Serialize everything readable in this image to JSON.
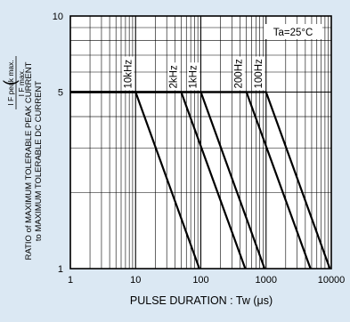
{
  "chart_data": {
    "type": "line",
    "x_scale": "log",
    "y_scale": "log",
    "xlim": [
      1,
      10000
    ],
    "ylim": [
      1,
      10
    ],
    "xlabel": "PULSE  DURATION : Tw (μs)",
    "ylabel_line1": "RATIO of MAXIMUM TOLERABLE  PEAK CURRENT",
    "ylabel_line2": "to MAXIMUM TOLERABLE DC CURRENT",
    "ylabel_frac_num": "I F peak max.",
    "ylabel_frac_den": "I F max.",
    "annotation": "Ta=25°C",
    "grid": true,
    "x_ticks": [
      {
        "value": 1,
        "label": "1"
      },
      {
        "value": 10,
        "label": "10"
      },
      {
        "value": 100,
        "label": "100"
      },
      {
        "value": 1000,
        "label": "1000"
      },
      {
        "value": 10000,
        "label": "10000"
      }
    ],
    "y_ticks": [
      {
        "value": 1,
        "label": "1"
      },
      {
        "value": 5,
        "label": "5"
      },
      {
        "value": 10,
        "label": "10"
      }
    ],
    "series": [
      {
        "name": "10kHz",
        "x": [
          1,
          10,
          95
        ],
        "y": [
          5,
          5,
          1
        ]
      },
      {
        "name": "2kHz",
        "x": [
          1,
          50,
          480
        ],
        "y": [
          5,
          5,
          1
        ]
      },
      {
        "name": "1kHz",
        "x": [
          1,
          100,
          950
        ],
        "y": [
          5,
          5,
          1
        ]
      },
      {
        "name": "200Hz",
        "x": [
          1,
          500,
          4800
        ],
        "y": [
          5,
          5,
          1
        ]
      },
      {
        "name": "100Hz",
        "x": [
          1,
          1000,
          9500
        ],
        "y": [
          5,
          5,
          1
        ]
      }
    ]
  },
  "colors": {
    "background": "#dbe8f3",
    "plot_area": "#ffffff",
    "line": "#000000"
  }
}
